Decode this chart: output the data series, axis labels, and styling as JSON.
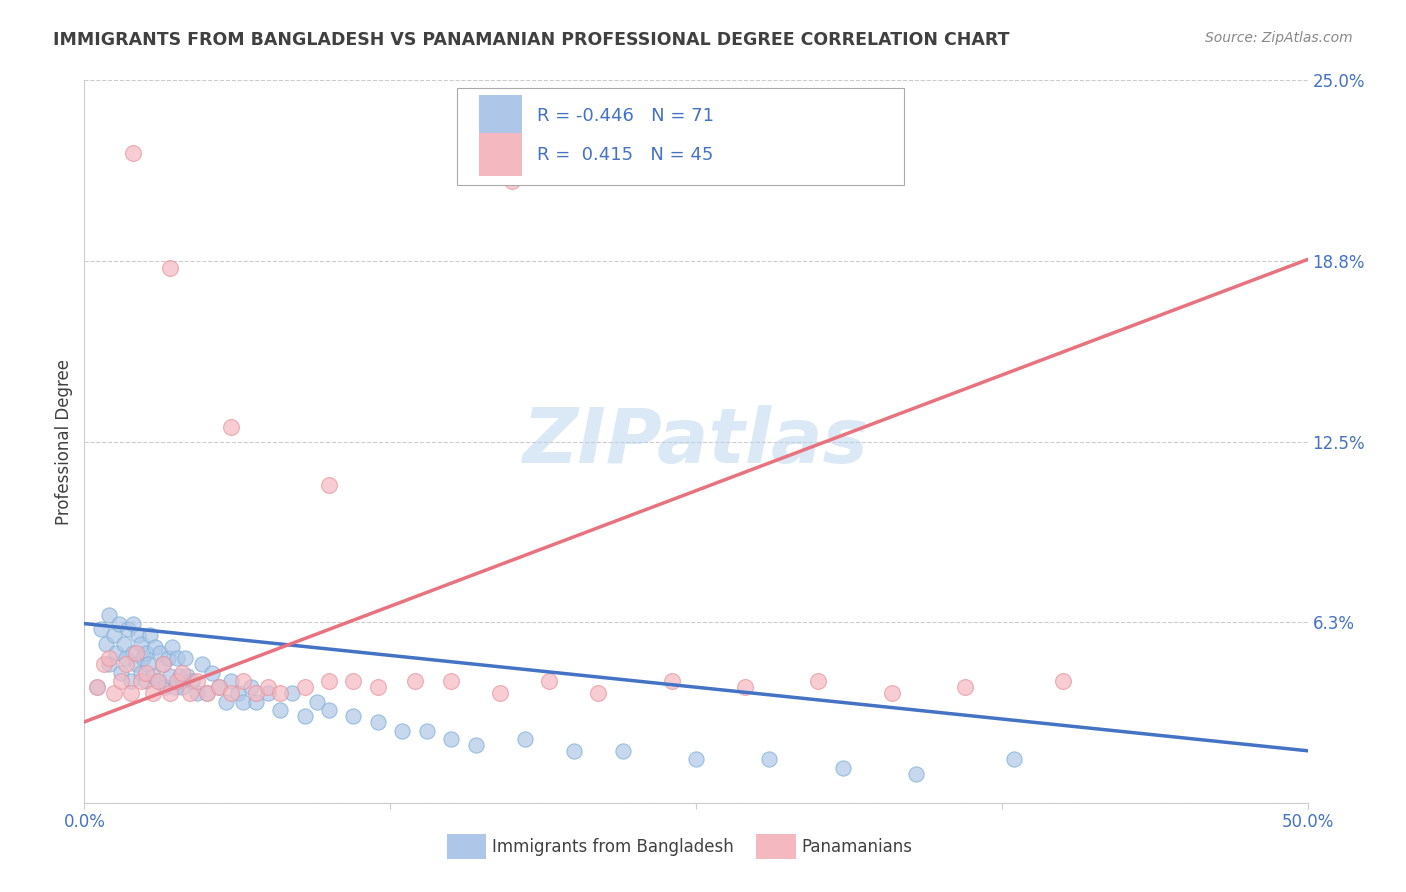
{
  "title": "IMMIGRANTS FROM BANGLADESH VS PANAMANIAN PROFESSIONAL DEGREE CORRELATION CHART",
  "source": "Source: ZipAtlas.com",
  "ylabel": "Professional Degree",
  "xlim": [
    0.0,
    0.5
  ],
  "ylim": [
    0.0,
    0.25
  ],
  "yticks": [
    0.0,
    0.0625,
    0.125,
    0.1875,
    0.25
  ],
  "ytick_labels": [
    "",
    "6.3%",
    "12.5%",
    "18.8%",
    "25.0%"
  ],
  "xticks": [
    0.0,
    0.125,
    0.25,
    0.375,
    0.5
  ],
  "xtick_labels": [
    "0.0%",
    "",
    "",
    "",
    "50.0%"
  ],
  "blue_R": -0.446,
  "blue_N": 71,
  "pink_R": 0.415,
  "pink_N": 45,
  "blue_color": "#aec6e8",
  "blue_edge_color": "#7bafd4",
  "blue_line_color": "#4472c4",
  "pink_color": "#f4b8c1",
  "pink_edge_color": "#e8909a",
  "pink_line_color": "#e8737f",
  "blue_label": "Immigrants from Bangladesh",
  "pink_label": "Panamanians",
  "watermark_color": "#b8d4ee",
  "background_color": "#ffffff",
  "grid_color": "#cccccc",
  "title_color": "#404040",
  "axis_label_color": "#404040",
  "tick_color": "#4472c4",
  "blue_line_x0": 0.0,
  "blue_line_y0": 0.062,
  "blue_line_x1": 0.5,
  "blue_line_y1": 0.018,
  "pink_line_x0": 0.0,
  "pink_line_y0": 0.028,
  "pink_line_x1": 0.5,
  "pink_line_y1": 0.188,
  "blue_x": [
    0.005,
    0.007,
    0.009,
    0.01,
    0.01,
    0.012,
    0.013,
    0.014,
    0.015,
    0.016,
    0.017,
    0.018,
    0.019,
    0.02,
    0.02,
    0.021,
    0.022,
    0.023,
    0.023,
    0.024,
    0.025,
    0.025,
    0.026,
    0.027,
    0.028,
    0.029,
    0.03,
    0.031,
    0.032,
    0.033,
    0.034,
    0.035,
    0.036,
    0.037,
    0.038,
    0.039,
    0.04,
    0.041,
    0.042,
    0.044,
    0.046,
    0.048,
    0.05,
    0.052,
    0.055,
    0.058,
    0.06,
    0.063,
    0.065,
    0.068,
    0.07,
    0.075,
    0.08,
    0.085,
    0.09,
    0.095,
    0.1,
    0.11,
    0.12,
    0.13,
    0.14,
    0.15,
    0.16,
    0.18,
    0.2,
    0.22,
    0.25,
    0.28,
    0.31,
    0.34,
    0.38
  ],
  "blue_y": [
    0.04,
    0.06,
    0.055,
    0.065,
    0.048,
    0.058,
    0.052,
    0.062,
    0.045,
    0.055,
    0.05,
    0.06,
    0.042,
    0.052,
    0.062,
    0.048,
    0.058,
    0.045,
    0.055,
    0.05,
    0.042,
    0.052,
    0.048,
    0.058,
    0.044,
    0.054,
    0.042,
    0.052,
    0.048,
    0.04,
    0.05,
    0.044,
    0.054,
    0.04,
    0.05,
    0.044,
    0.04,
    0.05,
    0.044,
    0.042,
    0.038,
    0.048,
    0.038,
    0.045,
    0.04,
    0.035,
    0.042,
    0.038,
    0.035,
    0.04,
    0.035,
    0.038,
    0.032,
    0.038,
    0.03,
    0.035,
    0.032,
    0.03,
    0.028,
    0.025,
    0.025,
    0.022,
    0.02,
    0.022,
    0.018,
    0.018,
    0.015,
    0.015,
    0.012,
    0.01,
    0.015
  ],
  "pink_x": [
    0.005,
    0.008,
    0.01,
    0.012,
    0.015,
    0.017,
    0.019,
    0.021,
    0.023,
    0.025,
    0.028,
    0.03,
    0.032,
    0.035,
    0.038,
    0.04,
    0.043,
    0.046,
    0.05,
    0.055,
    0.06,
    0.065,
    0.07,
    0.075,
    0.08,
    0.09,
    0.1,
    0.11,
    0.12,
    0.135,
    0.15,
    0.17,
    0.19,
    0.21,
    0.24,
    0.27,
    0.3,
    0.33,
    0.36,
    0.4,
    0.06,
    0.1,
    0.175,
    0.035,
    0.02
  ],
  "pink_y": [
    0.04,
    0.048,
    0.05,
    0.038,
    0.042,
    0.048,
    0.038,
    0.052,
    0.042,
    0.045,
    0.038,
    0.042,
    0.048,
    0.038,
    0.042,
    0.045,
    0.038,
    0.042,
    0.038,
    0.04,
    0.038,
    0.042,
    0.038,
    0.04,
    0.038,
    0.04,
    0.042,
    0.042,
    0.04,
    0.042,
    0.042,
    0.038,
    0.042,
    0.038,
    0.042,
    0.04,
    0.042,
    0.038,
    0.04,
    0.042,
    0.13,
    0.11,
    0.215,
    0.185,
    0.225
  ]
}
